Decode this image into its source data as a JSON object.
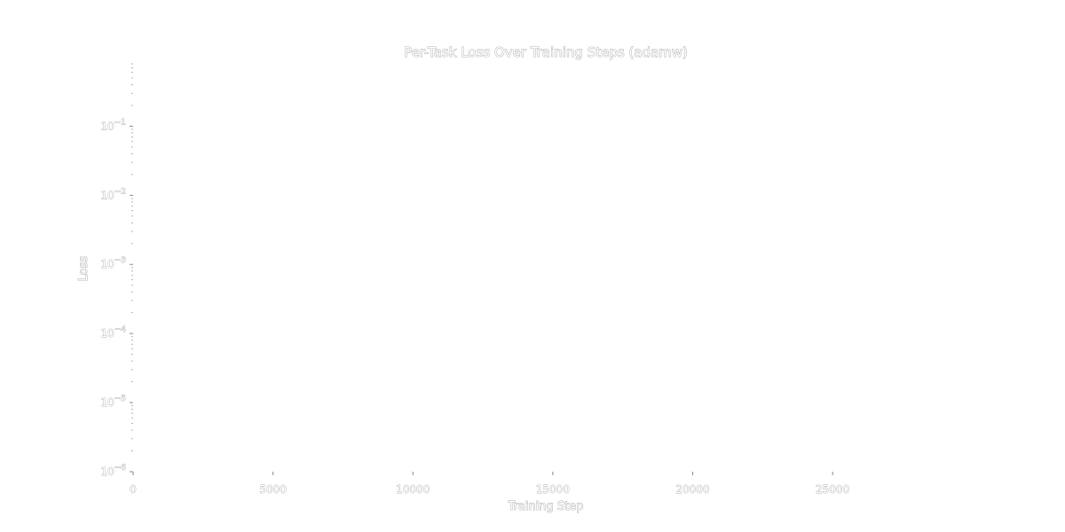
{
  "chart_data": {
    "type": "line",
    "title": "Per-Task Loss Over Training Steps (adamw)",
    "xlabel": "Training Step",
    "ylabel": "Loss",
    "xlim": [
      0,
      29500
    ],
    "ylim": [
      1e-06,
      0.8
    ],
    "yscale": "log",
    "x_ticks": [
      0,
      5000,
      10000,
      15000,
      20000,
      25000
    ],
    "x_tick_labels": [
      "0",
      "5000",
      "10000",
      "15000",
      "20000",
      "25000"
    ],
    "y_ticks": [
      1e-06,
      1e-05,
      0.0001,
      0.001,
      0.01,
      0.1
    ],
    "y_tick_labels": [
      {
        "base": "10",
        "exp": "−6"
      },
      {
        "base": "10",
        "exp": "−5"
      },
      {
        "base": "10",
        "exp": "−4"
      },
      {
        "base": "10",
        "exp": "−3"
      },
      {
        "base": "10",
        "exp": "−2"
      },
      {
        "base": "10",
        "exp": "−1"
      }
    ],
    "grid": false,
    "series": []
  }
}
